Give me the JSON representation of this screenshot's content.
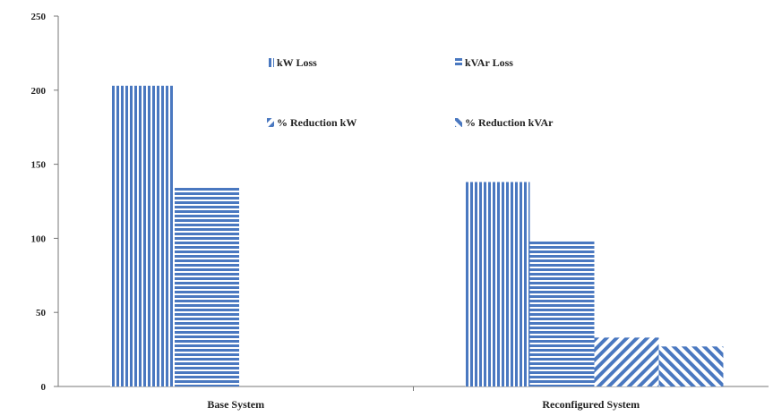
{
  "chart_data": {
    "type": "bar",
    "categories": [
      "Base System",
      "Reconfigured System"
    ],
    "series": [
      {
        "name": "kW Loss",
        "values": [
          203,
          138
        ],
        "color": "#4a78c0",
        "pattern": "vertical"
      },
      {
        "name": "kVAr Loss",
        "values": [
          135,
          98
        ],
        "color": "#4a78c0",
        "pattern": "horizontal"
      },
      {
        "name": "% Reduction kW",
        "values": [
          0,
          33
        ],
        "color": "#4a78c0",
        "pattern": "diagonal-down"
      },
      {
        "name": "% Reduction kVAr",
        "values": [
          0,
          27
        ],
        "color": "#4a78c0",
        "pattern": "diagonal-up"
      }
    ],
    "ylim": [
      0,
      250
    ],
    "yticks": [
      0,
      50,
      100,
      150,
      200,
      250
    ],
    "grid": false,
    "legend_position": "top-center"
  }
}
